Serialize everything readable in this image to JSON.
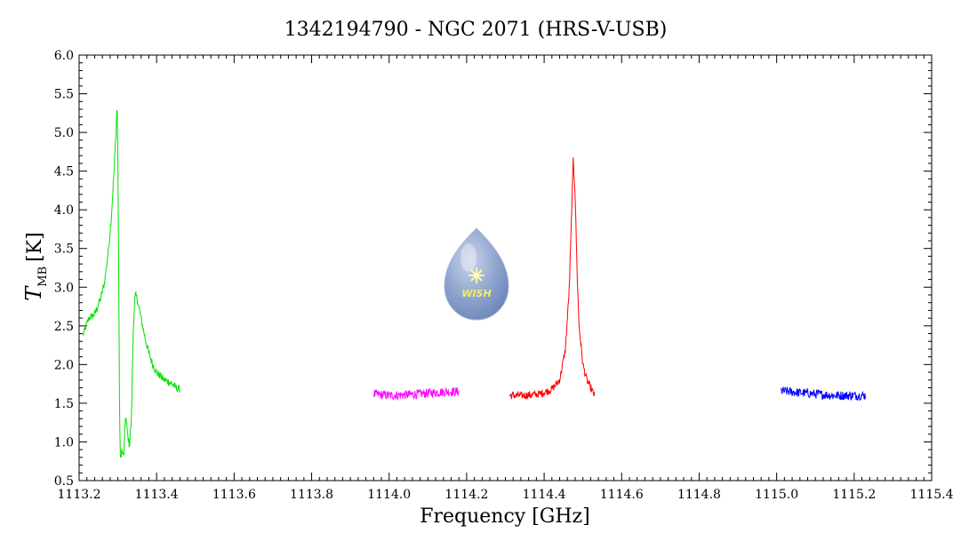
{
  "chart_data": {
    "type": "line",
    "title": "1342194790 - NGC 2071 (HRS-V-USB)",
    "xlabel": "Frequency [GHz]",
    "ylabel_main": "T",
    "ylabel_sub": "MB",
    "ylabel_unit": "[K]",
    "xlim": [
      1113.2,
      1115.4
    ],
    "ylim": [
      0.5,
      6.0
    ],
    "x_ticks": [
      "1113.2",
      "1113.4",
      "1113.6",
      "1113.8",
      "1114.0",
      "1114.2",
      "1114.4",
      "1114.6",
      "1114.8",
      "1115.0",
      "1115.2",
      "1115.4"
    ],
    "y_ticks": [
      "0.5",
      "1.0",
      "1.5",
      "2.0",
      "2.5",
      "3.0",
      "3.5",
      "4.0",
      "4.5",
      "5.0",
      "5.5",
      "6.0"
    ],
    "grid": false,
    "series": [
      {
        "color": "#00e000",
        "points": [
          [
            1113.21,
            2.38
          ],
          [
            1113.225,
            2.6
          ],
          [
            1113.24,
            2.65
          ],
          [
            1113.255,
            2.85
          ],
          [
            1113.265,
            3.05
          ],
          [
            1113.275,
            3.45
          ],
          [
            1113.283,
            3.9
          ],
          [
            1113.29,
            4.5
          ],
          [
            1113.295,
            5.0
          ],
          [
            1113.298,
            5.4
          ],
          [
            1113.3,
            4.6
          ],
          [
            1113.302,
            3.2
          ],
          [
            1113.304,
            1.6
          ],
          [
            1113.306,
            0.75
          ],
          [
            1113.31,
            0.9
          ],
          [
            1113.315,
            0.8
          ],
          [
            1113.32,
            1.35
          ],
          [
            1113.325,
            1.1
          ],
          [
            1113.33,
            0.95
          ],
          [
            1113.335,
            1.3
          ],
          [
            1113.34,
            2.5
          ],
          [
            1113.345,
            2.9
          ],
          [
            1113.35,
            2.85
          ],
          [
            1113.36,
            2.6
          ],
          [
            1113.37,
            2.35
          ],
          [
            1113.38,
            2.15
          ],
          [
            1113.39,
            2.0
          ],
          [
            1113.4,
            1.9
          ],
          [
            1113.41,
            1.85
          ],
          [
            1113.42,
            1.8
          ],
          [
            1113.43,
            1.78
          ],
          [
            1113.44,
            1.75
          ],
          [
            1113.45,
            1.7
          ],
          [
            1113.46,
            1.68
          ]
        ],
        "noise": 0.05
      },
      {
        "color": "#ff00ff",
        "points": [
          [
            1113.96,
            1.62
          ],
          [
            1114.0,
            1.6
          ],
          [
            1114.05,
            1.61
          ],
          [
            1114.1,
            1.63
          ],
          [
            1114.15,
            1.65
          ],
          [
            1114.18,
            1.65
          ]
        ],
        "noise": 0.06
      },
      {
        "color": "#ff0000",
        "points": [
          [
            1114.31,
            1.6
          ],
          [
            1114.35,
            1.6
          ],
          [
            1114.39,
            1.62
          ],
          [
            1114.42,
            1.68
          ],
          [
            1114.44,
            1.8
          ],
          [
            1114.455,
            2.2
          ],
          [
            1114.465,
            3.0
          ],
          [
            1114.47,
            3.8
          ],
          [
            1114.475,
            4.65
          ],
          [
            1114.48,
            4.2
          ],
          [
            1114.485,
            3.2
          ],
          [
            1114.49,
            2.5
          ],
          [
            1114.5,
            2.0
          ],
          [
            1114.51,
            1.8
          ],
          [
            1114.52,
            1.7
          ],
          [
            1114.53,
            1.6
          ]
        ],
        "noise": 0.05
      },
      {
        "color": "#0000ff",
        "points": [
          [
            1115.01,
            1.66
          ],
          [
            1115.05,
            1.64
          ],
          [
            1115.1,
            1.62
          ],
          [
            1115.15,
            1.6
          ],
          [
            1115.2,
            1.6
          ],
          [
            1115.23,
            1.6
          ]
        ],
        "noise": 0.06
      }
    ]
  },
  "logo": {
    "text": "WISH"
  }
}
